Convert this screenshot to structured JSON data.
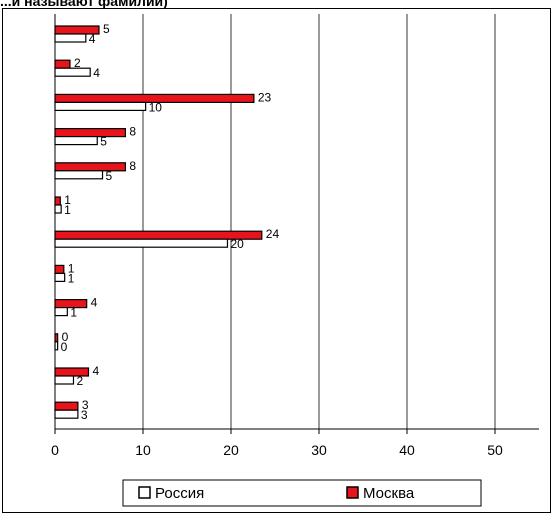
{
  "title": "...и называют фамилии)",
  "colors": {
    "russia": "#ffffff",
    "moscow": "#e8141b",
    "grid": "#000000"
  },
  "chart_data": {
    "type": "bar",
    "orientation": "horizontal",
    "title": "...и называют фамилии)",
    "xlim": [
      0,
      55
    ],
    "xticks": [
      "0",
      "10",
      "20",
      "30",
      "40",
      "50"
    ],
    "grid": true,
    "legend": "bottom",
    "series": [
      {
        "name": "Россия",
        "color": "#ffffff",
        "values": [
          4,
          4,
          10,
          5,
          5,
          1,
          20,
          1,
          1,
          0,
          2,
          3
        ]
      },
      {
        "name": "Москва",
        "color": "#e8141b",
        "values": [
          5,
          2,
          23,
          8,
          8,
          1,
          24,
          1,
          4,
          0,
          4,
          3
        ]
      }
    ],
    "bar_lengths": {
      "Россия": [
        3.5,
        4,
        10.3,
        4.8,
        5.4,
        0.7,
        19.6,
        1.1,
        1.4,
        0.3,
        2.1,
        2.6
      ],
      "Москва": [
        5,
        1.7,
        22.6,
        8,
        8,
        0.6,
        23.5,
        1,
        3.6,
        0.3,
        3.8,
        2.6
      ]
    }
  }
}
